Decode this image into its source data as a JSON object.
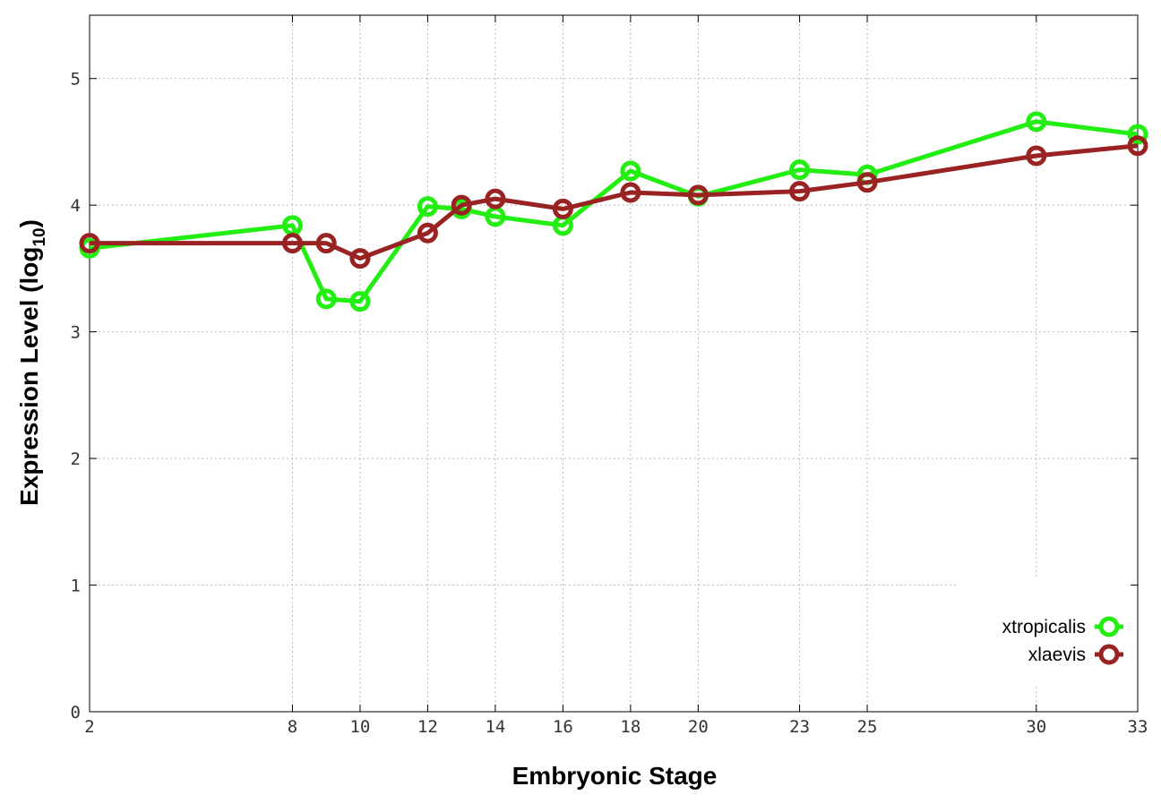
{
  "chart_data": {
    "type": "line",
    "xlabel": "Embryonic Stage",
    "ylabel_main": "Expression Level (log",
    "ylabel_sub": "10",
    "ylabel_close": ")",
    "xlim": [
      2,
      33
    ],
    "ylim": [
      0,
      5.5
    ],
    "grid": true,
    "legend_position": "bottom-right",
    "x_ticks": [
      2,
      8,
      10,
      12,
      14,
      16,
      18,
      20,
      23,
      25,
      30,
      33
    ],
    "y_ticks": [
      0,
      1,
      2,
      3,
      4,
      5
    ],
    "x": [
      2,
      8,
      9,
      10,
      12,
      13,
      14,
      16,
      18,
      20,
      23,
      25,
      30,
      33
    ],
    "series": [
      {
        "name": "xtropicalis",
        "color": "#22ee11",
        "values": [
          3.66,
          3.84,
          3.26,
          3.24,
          3.99,
          3.97,
          3.91,
          3.84,
          4.27,
          4.07,
          4.28,
          4.24,
          4.66,
          4.56
        ]
      },
      {
        "name": "xlaevis",
        "color": "#992222",
        "values": [
          3.7,
          3.7,
          3.7,
          3.58,
          3.78,
          4.0,
          4.05,
          3.97,
          4.1,
          4.08,
          4.11,
          4.18,
          4.39,
          4.47
        ]
      }
    ]
  }
}
